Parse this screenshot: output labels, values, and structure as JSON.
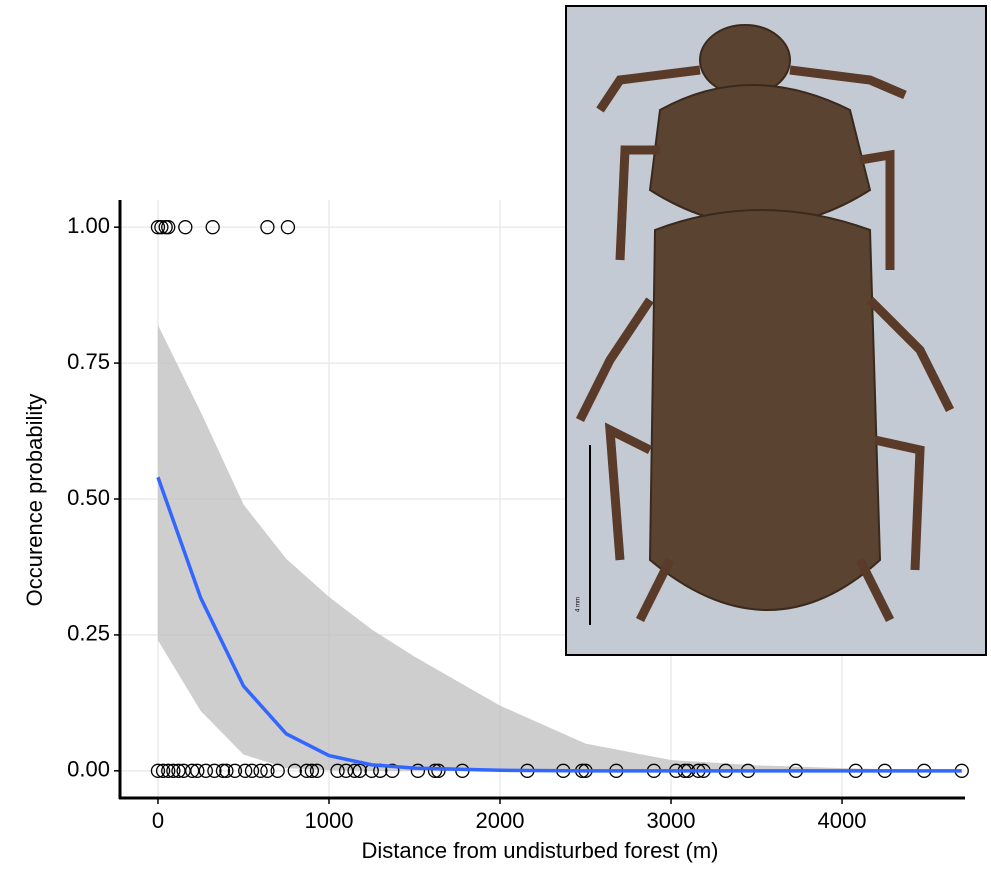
{
  "chart_data": {
    "type": "scatter",
    "x_label": "Distance from undisturbed forest (m)",
    "y_label": "Occurence probability",
    "xlim": [
      -222,
      4719
    ],
    "ylim": [
      -0.05,
      1.05
    ],
    "xticks": [
      0,
      1000,
      2000,
      3000,
      4000
    ],
    "yticks": [
      {
        "value": 0,
        "label": "0.00"
      },
      {
        "value": 0.25,
        "label": "0.25"
      },
      {
        "value": 0.5,
        "label": "0.50"
      },
      {
        "value": 0.75,
        "label": "0.75"
      },
      {
        "value": 1,
        "label": "1.00"
      }
    ],
    "grid": true,
    "series": [
      {
        "color": "#000000",
        "x": [
          0,
          20,
          45,
          60,
          160,
          320,
          640,
          760,
          0,
          30,
          60,
          90,
          120,
          150,
          200,
          230,
          280,
          330,
          380,
          400,
          450,
          510,
          550,
          600,
          640,
          700,
          800,
          870,
          900,
          930,
          1050,
          1100,
          1150,
          1180,
          1250,
          1300,
          1370,
          1520,
          1620,
          1640,
          1780,
          2160,
          2370,
          2480,
          2500,
          2680,
          2900,
          3030,
          3080,
          3100,
          3160,
          3190,
          3320,
          3450,
          3730,
          4080,
          4250,
          4480,
          4700
        ],
        "values": [
          1,
          1,
          1,
          1,
          1,
          1,
          1,
          1,
          0,
          0,
          0,
          0,
          0,
          0,
          0,
          0,
          0,
          0,
          0,
          0,
          0,
          0,
          0,
          0,
          0,
          0,
          0,
          0,
          0,
          0,
          0,
          0,
          0,
          0,
          0,
          0,
          0,
          0,
          0,
          0,
          0,
          0,
          0,
          0,
          0,
          0,
          0,
          0,
          0,
          0,
          0,
          0,
          0,
          0,
          0,
          0,
          0,
          0,
          0
        ]
      }
    ],
    "fit": {
      "color": "#3366ff",
      "band_color": "#bebebe",
      "x": [
        0,
        250,
        500,
        750,
        1000,
        1250,
        1500,
        2000,
        2500,
        3000,
        3500,
        4000,
        4700
      ],
      "values": [
        0.54,
        0.318,
        0.156,
        0.068,
        0.028,
        0.011,
        0.005,
        0.001,
        0,
        0,
        0,
        0,
        0
      ],
      "lower": [
        0.24,
        0.11,
        0.03,
        0.005,
        0.001,
        0,
        0,
        0,
        0,
        0,
        0,
        0,
        0
      ],
      "upper": [
        0.82,
        0.66,
        0.49,
        0.39,
        0.32,
        0.26,
        0.21,
        0.12,
        0.05,
        0.02,
        0.01,
        0.005,
        0
      ]
    }
  },
  "inset": {
    "scale_label": "4 mm"
  }
}
